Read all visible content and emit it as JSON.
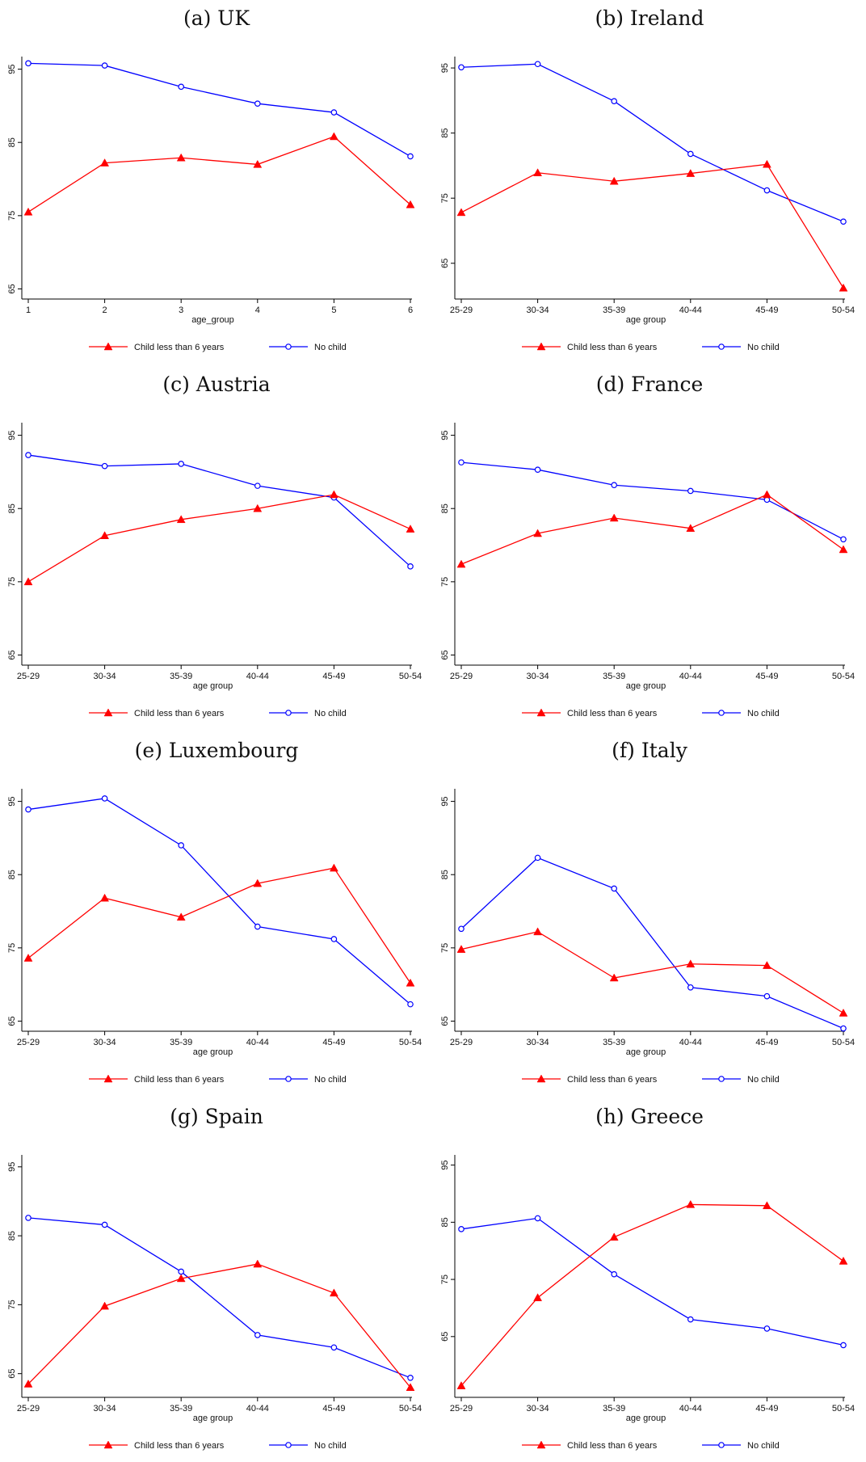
{
  "legend": {
    "child_label": "Child less than 6 years",
    "nochild_label": "No child"
  },
  "colors": {
    "child": "#ff0000",
    "nochild": "#0000ff",
    "axis": "#000000"
  },
  "panels": [
    {
      "title": "(a) UK"
    },
    {
      "title": "(b) Ireland"
    },
    {
      "title": "(c) Austria"
    },
    {
      "title": "(d) France"
    },
    {
      "title": "(e) Luxembourg"
    },
    {
      "title": "(f) Italy"
    },
    {
      "title": "(g) Spain"
    },
    {
      "title": "(h) Greece"
    }
  ],
  "chart_data": [
    {
      "type": "line",
      "title": "(a) UK",
      "xlabel": "age_group",
      "ylabel": "",
      "categories": [
        "1",
        "2",
        "3",
        "4",
        "5",
        "6"
      ],
      "yticks": [
        65,
        75,
        85,
        95
      ],
      "ylim": [
        64.5,
        96.5
      ],
      "grid": false,
      "legend_position": "bottom",
      "series": [
        {
          "name": "Child less than 6 years",
          "marker": "triangle",
          "color": "#ff0000",
          "values": [
            75.5,
            82.2,
            82.9,
            82.0,
            85.8,
            76.5
          ]
        },
        {
          "name": "No child",
          "marker": "circle",
          "color": "#0000ff",
          "values": [
            95.8,
            95.5,
            92.6,
            90.3,
            89.1,
            83.1
          ]
        }
      ]
    },
    {
      "type": "line",
      "title": "(b) Ireland",
      "xlabel": "age group",
      "ylabel": "",
      "categories": [
        "25-29",
        "30-34",
        "35-39",
        "40-44",
        "45-49",
        "50-54"
      ],
      "yticks": [
        65,
        75,
        85,
        95
      ],
      "ylim": [
        60.5,
        96.5
      ],
      "grid": false,
      "legend_position": "bottom",
      "series": [
        {
          "name": "Child less than 6 years",
          "marker": "triangle",
          "color": "#ff0000",
          "values": [
            72.8,
            78.9,
            77.6,
            78.8,
            80.2,
            61.2
          ]
        },
        {
          "name": "No child",
          "marker": "circle",
          "color": "#0000ff",
          "values": [
            95.1,
            95.6,
            89.9,
            81.8,
            76.2,
            71.4
          ]
        }
      ]
    },
    {
      "type": "line",
      "title": "(c) Austria",
      "xlabel": "age group",
      "ylabel": "",
      "categories": [
        "25-29",
        "30-34",
        "35-39",
        "40-44",
        "45-49",
        "50-54"
      ],
      "yticks": [
        65,
        75,
        85,
        95
      ],
      "ylim": [
        64.5,
        96.5
      ],
      "grid": false,
      "legend_position": "bottom",
      "series": [
        {
          "name": "Child less than 6 years",
          "marker": "triangle",
          "color": "#ff0000",
          "values": [
            75.0,
            81.3,
            83.5,
            85.0,
            86.9,
            82.2
          ]
        },
        {
          "name": "No child",
          "marker": "circle",
          "color": "#0000ff",
          "values": [
            92.3,
            90.8,
            91.1,
            88.1,
            86.5,
            77.1
          ]
        }
      ]
    },
    {
      "type": "line",
      "title": "(d) France",
      "xlabel": "age group",
      "ylabel": "",
      "categories": [
        "25-29",
        "30-34",
        "35-39",
        "40-44",
        "45-49",
        "50-54"
      ],
      "yticks": [
        65,
        75,
        85,
        95
      ],
      "ylim": [
        64.5,
        96.5
      ],
      "grid": false,
      "legend_position": "bottom",
      "series": [
        {
          "name": "Child less than 6 years",
          "marker": "triangle",
          "color": "#ff0000",
          "values": [
            77.4,
            81.6,
            83.7,
            82.3,
            86.9,
            79.4
          ]
        },
        {
          "name": "No child",
          "marker": "circle",
          "color": "#0000ff",
          "values": [
            91.3,
            90.3,
            88.2,
            87.4,
            86.2,
            80.8
          ]
        }
      ]
    },
    {
      "type": "line",
      "title": "(e) Luxembourg",
      "xlabel": "age group",
      "ylabel": "",
      "categories": [
        "25-29",
        "30-34",
        "35-39",
        "40-44",
        "45-49",
        "50-54"
      ],
      "yticks": [
        65,
        75,
        85,
        95
      ],
      "ylim": [
        64.5,
        96.5
      ],
      "grid": false,
      "legend_position": "bottom",
      "series": [
        {
          "name": "Child less than 6 years",
          "marker": "triangle",
          "color": "#ff0000",
          "values": [
            73.6,
            81.8,
            79.2,
            83.8,
            85.9,
            70.2
          ]
        },
        {
          "name": "No child",
          "marker": "circle",
          "color": "#0000ff",
          "values": [
            93.9,
            95.4,
            89.0,
            77.9,
            76.2,
            67.3
          ]
        }
      ]
    },
    {
      "type": "line",
      "title": "(f) Italy",
      "xlabel": "age group",
      "ylabel": "",
      "categories": [
        "25-29",
        "30-34",
        "35-39",
        "40-44",
        "45-49",
        "50-54"
      ],
      "yticks": [
        65,
        75,
        85,
        95
      ],
      "ylim": [
        64.5,
        96.5
      ],
      "grid": false,
      "legend_position": "bottom",
      "series": [
        {
          "name": "Child less than 6 years",
          "marker": "triangle",
          "color": "#ff0000",
          "values": [
            74.8,
            77.2,
            70.9,
            72.8,
            72.6,
            66.1
          ]
        },
        {
          "name": "No child",
          "marker": "circle",
          "color": "#0000ff",
          "values": [
            77.6,
            87.3,
            83.1,
            69.6,
            68.4,
            64.0
          ]
        }
      ]
    },
    {
      "type": "line",
      "title": "(g) Spain",
      "xlabel": "age group",
      "ylabel": "",
      "categories": [
        "25-29",
        "30-34",
        "35-39",
        "40-44",
        "45-49",
        "50-54"
      ],
      "yticks": [
        65,
        75,
        85,
        95
      ],
      "ylim": [
        62.5,
        96.5
      ],
      "grid": false,
      "legend_position": "bottom",
      "series": [
        {
          "name": "Child less than 6 years",
          "marker": "triangle",
          "color": "#ff0000",
          "values": [
            63.5,
            74.8,
            78.8,
            80.9,
            76.7,
            63.0
          ]
        },
        {
          "name": "No child",
          "marker": "circle",
          "color": "#0000ff",
          "values": [
            87.6,
            86.6,
            79.8,
            70.6,
            68.8,
            64.4
          ]
        }
      ]
    },
    {
      "type": "line",
      "title": "(h) Greece",
      "xlabel": "age group",
      "ylabel": "",
      "categories": [
        "25-29",
        "30-34",
        "35-39",
        "40-44",
        "45-49",
        "50-54"
      ],
      "yticks": [
        65,
        75,
        85,
        95
      ],
      "ylim": [
        55.5,
        96.5
      ],
      "grid": false,
      "legend_position": "bottom",
      "series": [
        {
          "name": "Child less than 6 years",
          "marker": "triangle",
          "color": "#ff0000",
          "values": [
            56.4,
            71.8,
            82.4,
            88.1,
            87.9,
            78.2
          ]
        },
        {
          "name": "No child",
          "marker": "circle",
          "color": "#0000ff",
          "values": [
            83.8,
            85.7,
            75.9,
            68.0,
            66.4,
            63.5
          ]
        }
      ]
    }
  ]
}
